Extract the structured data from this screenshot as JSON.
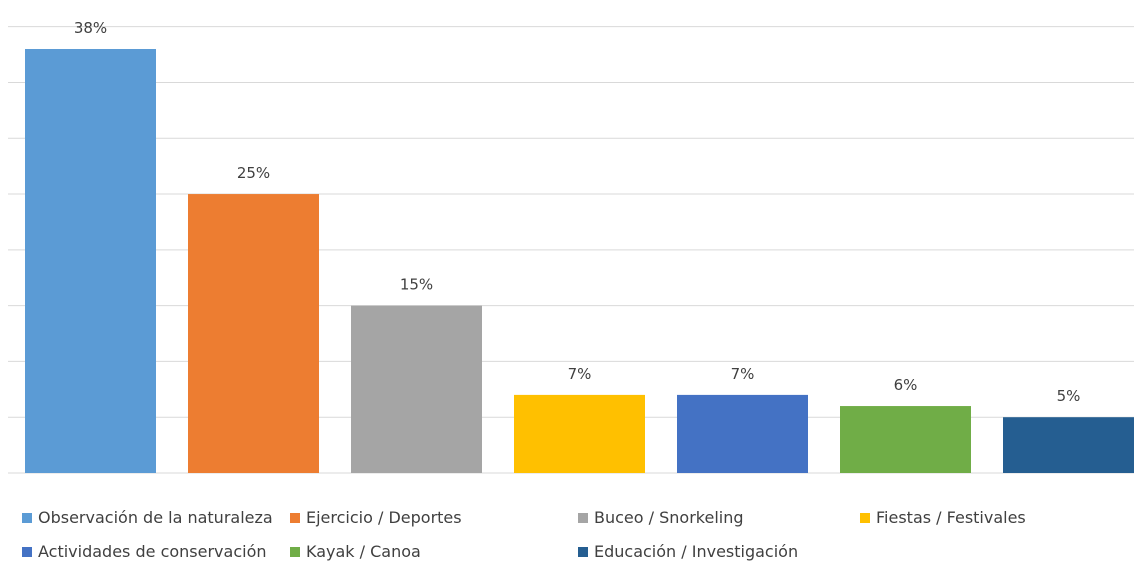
{
  "chart_data": {
    "type": "bar",
    "categories": [
      "Observación de la naturaleza",
      "Ejercicio / Deportes",
      "Buceo / Snorkeling",
      "Fiestas / Festivales",
      "Actividades de conservación",
      "Kayak / Canoa",
      "Educación / Investigación"
    ],
    "values": [
      38,
      25,
      15,
      7,
      7,
      6,
      5
    ],
    "data_labels": [
      "38%",
      "25%",
      "15%",
      "7%",
      "7%",
      "6%",
      "5%"
    ],
    "colors": [
      "#5b9bd5",
      "#ed7d31",
      "#a5a5a5",
      "#ffc000",
      "#4472c4",
      "#70ad47",
      "#255e91"
    ],
    "ylim": [
      0,
      40
    ],
    "grid": true,
    "legend_position": "bottom"
  }
}
